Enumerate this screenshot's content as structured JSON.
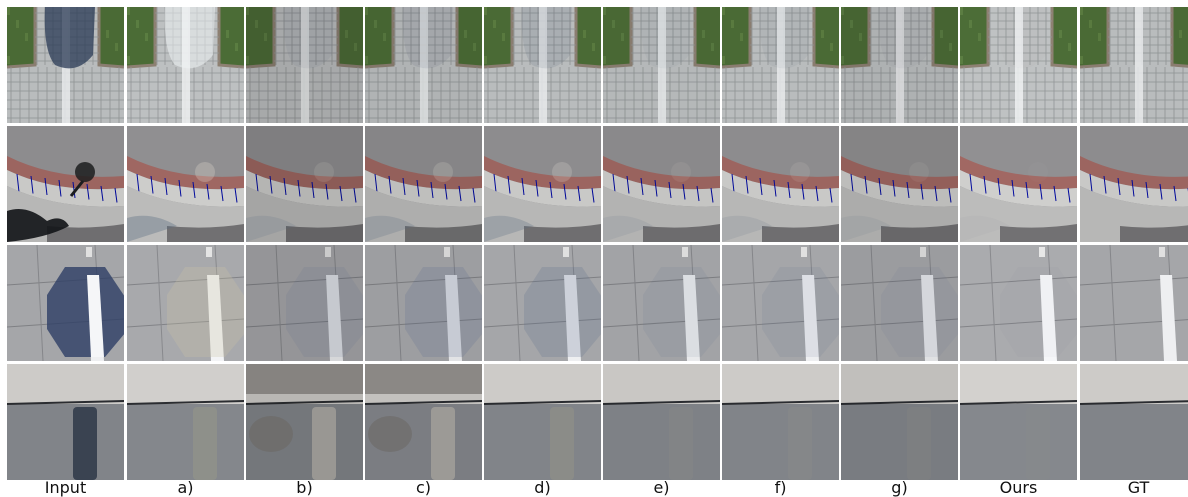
{
  "figure": {
    "column_labels": [
      "Input",
      "a)",
      "b)",
      "c)",
      "d)",
      "e)",
      "f)",
      "g)",
      "Ours",
      "GT"
    ],
    "rows": [
      {
        "scene": "paved-path-with-grass",
        "shadow_shape": "umbrella-shadow"
      },
      {
        "scene": "curb-with-brick-border",
        "shadow_shape": "person-and-tree-shadow"
      },
      {
        "scene": "stone-tiles-with-white-stripe",
        "shadow_shape": "octagon-shadow"
      },
      {
        "scene": "wall-and-floor",
        "shadow_shape": "pole-shadow"
      }
    ]
  }
}
